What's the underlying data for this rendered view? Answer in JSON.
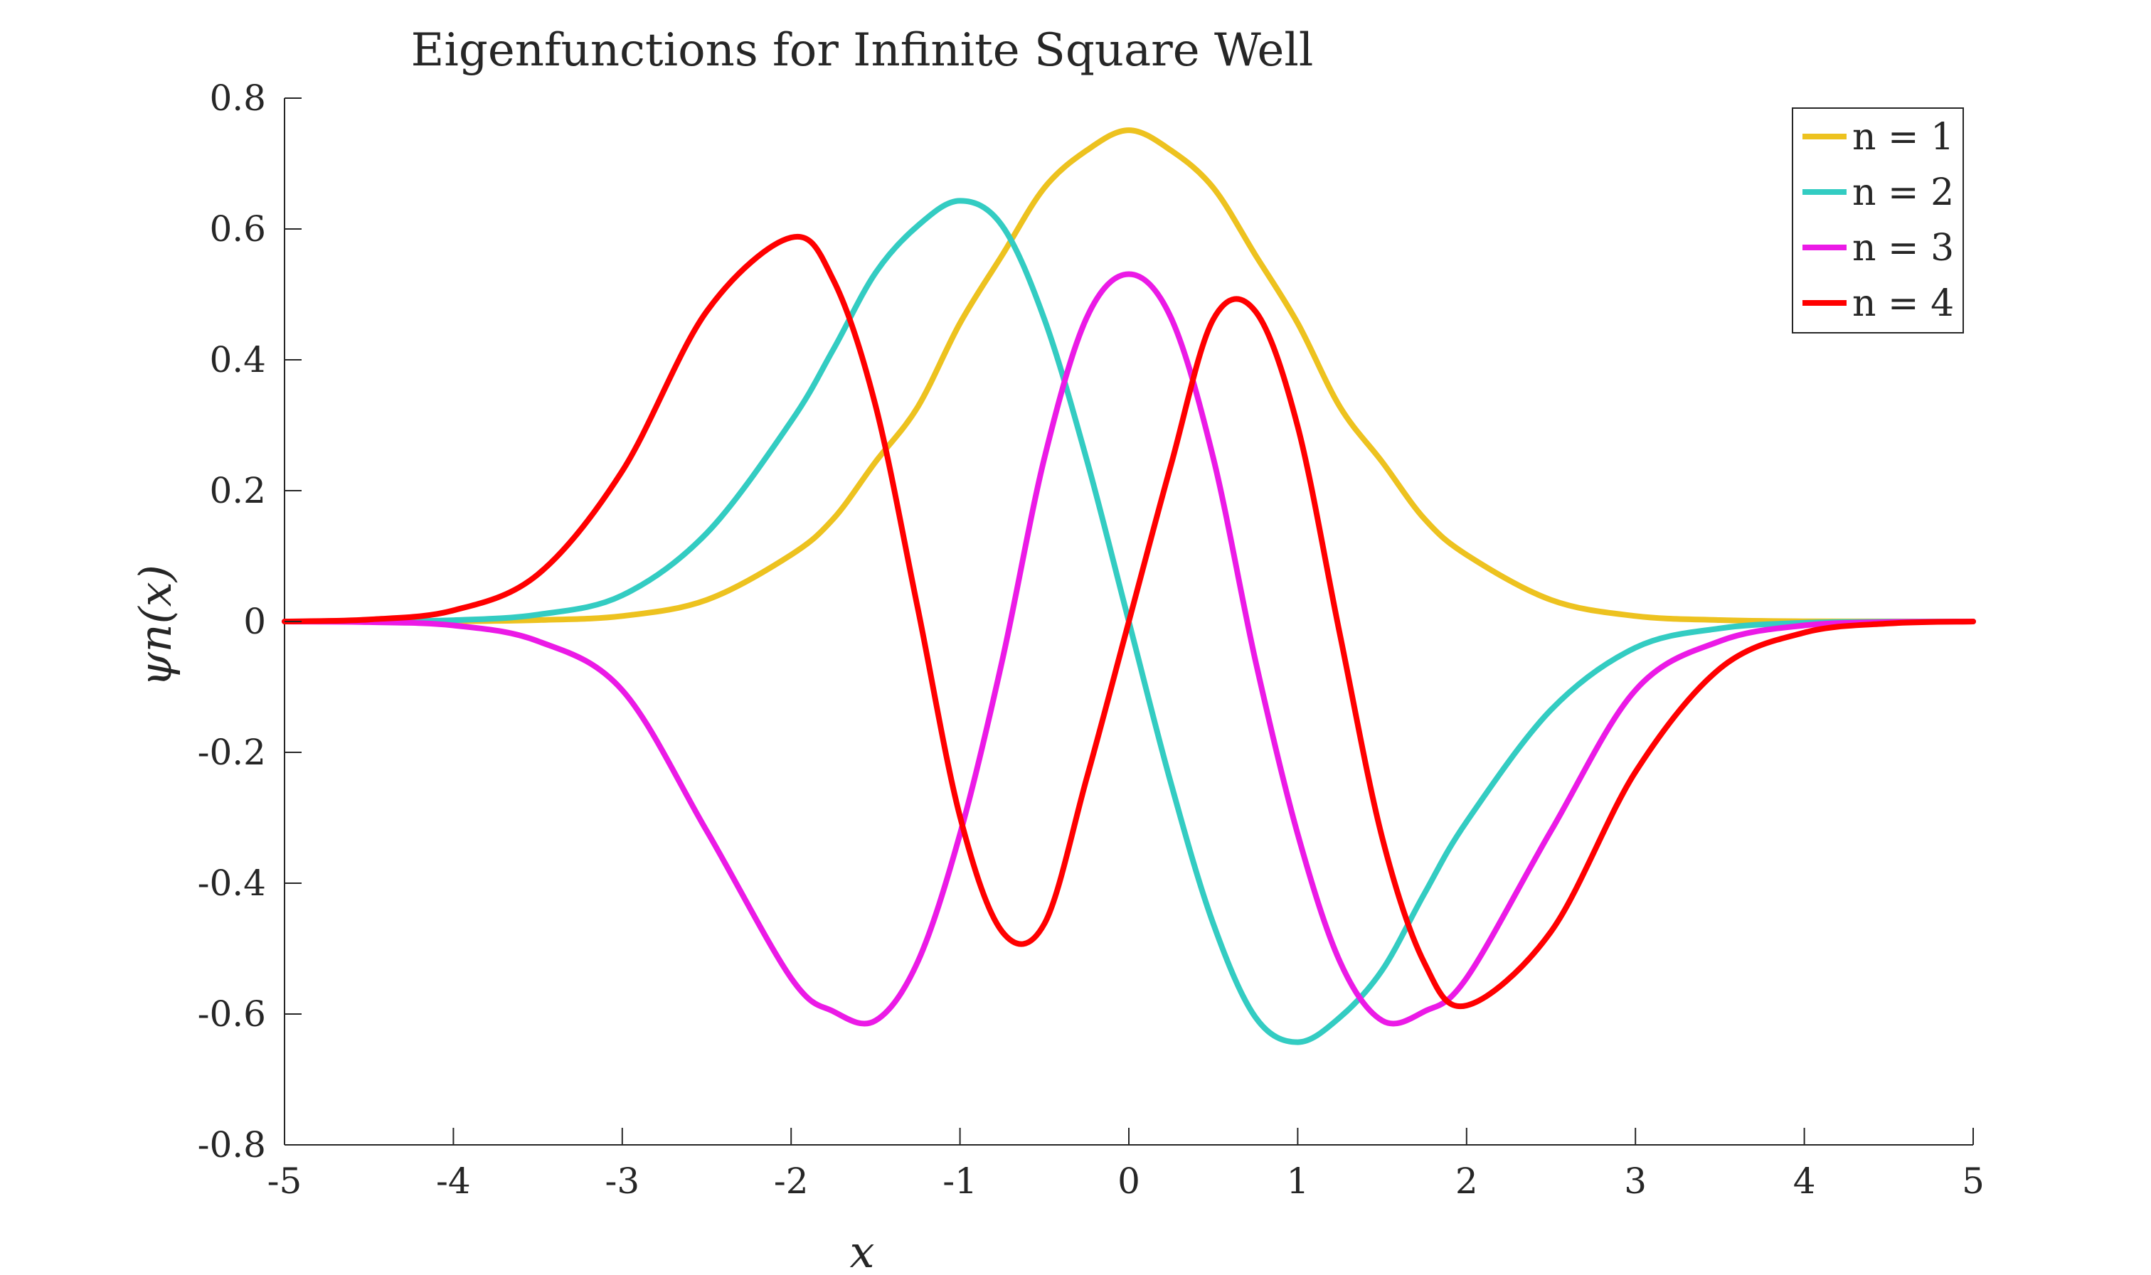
{
  "chart_data": {
    "type": "line",
    "title": "Eigenfunctions for Infinite Square Well",
    "xlabel": "x",
    "ylabel": "ψn(x)",
    "xlim": [
      -5,
      5
    ],
    "ylim": [
      -0.8,
      0.8
    ],
    "xticks": [
      -5,
      -4,
      -3,
      -2,
      -1,
      0,
      1,
      2,
      3,
      4,
      5
    ],
    "xtick_labels": [
      "-5",
      "-4",
      "-3",
      "-2",
      "-1",
      "0",
      "1",
      "2",
      "3",
      "4",
      "5"
    ],
    "yticks": [
      -0.8,
      -0.6,
      -0.4,
      -0.2,
      0,
      0.2,
      0.4,
      0.6,
      0.8
    ],
    "ytick_labels": [
      "-0.8",
      "-0.6",
      "-0.4",
      "-0.2",
      "0",
      "0.2",
      "0.4",
      "0.6",
      "0.8"
    ],
    "grid": false,
    "legend_position": "top-right",
    "x": [
      -5,
      -4.5,
      -4,
      -3.5,
      -3,
      -2.5,
      -2,
      -1.75,
      -1.5,
      -1.25,
      -1,
      -0.75,
      -0.5,
      -0.25,
      0,
      0.25,
      0.5,
      0.75,
      1,
      1.25,
      1.5,
      1.75,
      2,
      2.5,
      3,
      3.5,
      4,
      4.5,
      5
    ],
    "series": [
      {
        "name": "n = 1",
        "color": "#EDC21F",
        "values": [
          0.0,
          0.0001,
          0.0003,
          0.0022,
          0.0084,
          0.033,
          0.102,
          0.157,
          0.244,
          0.328,
          0.456,
          0.56,
          0.663,
          0.72,
          0.751,
          0.72,
          0.663,
          0.56,
          0.456,
          0.328,
          0.244,
          0.157,
          0.102,
          0.033,
          0.0084,
          0.0022,
          0.0003,
          0.0001,
          0.0
        ]
      },
      {
        "name": "n = 2",
        "color": "#33CCC2",
        "values": [
          0.0,
          0.0003,
          0.002,
          0.0105,
          0.04,
          0.135,
          0.306,
          0.416,
          0.533,
          0.605,
          0.643,
          0.605,
          0.462,
          0.248,
          0.0,
          -0.248,
          -0.462,
          -0.605,
          -0.643,
          -0.605,
          -0.533,
          -0.416,
          -0.306,
          -0.135,
          -0.04,
          -0.0105,
          -0.002,
          -0.0003,
          0.0
        ]
      },
      {
        "name": "n = 3",
        "color": "#EB1AE6",
        "values": [
          0.0,
          -0.001,
          -0.006,
          -0.03,
          -0.105,
          -0.32,
          -0.545,
          -0.596,
          -0.61,
          -0.52,
          -0.325,
          -0.06,
          0.25,
          0.464,
          0.531,
          0.464,
          0.25,
          -0.06,
          -0.325,
          -0.52,
          -0.61,
          -0.596,
          -0.545,
          -0.32,
          -0.105,
          -0.03,
          -0.006,
          -0.001,
          0.0
        ]
      },
      {
        "name": "n = 4",
        "color": "#FF0000",
        "values": [
          0.0,
          0.003,
          0.017,
          0.072,
          0.23,
          0.474,
          0.587,
          0.522,
          0.33,
          0.02,
          -0.298,
          -0.474,
          -0.462,
          -0.24,
          0.0,
          0.24,
          0.462,
          0.474,
          0.298,
          -0.02,
          -0.33,
          -0.522,
          -0.587,
          -0.474,
          -0.23,
          -0.072,
          -0.017,
          -0.003,
          0.0
        ]
      }
    ]
  }
}
